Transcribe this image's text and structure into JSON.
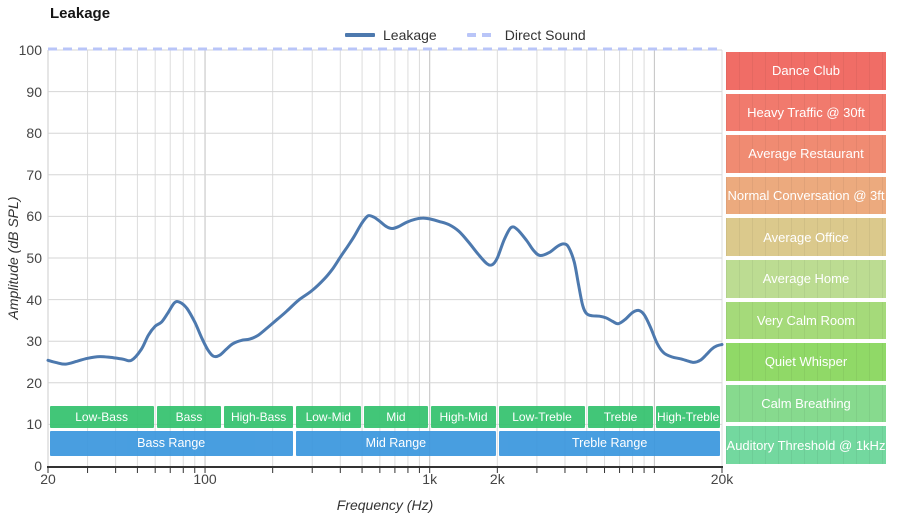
{
  "title": "Leakage",
  "legend": [
    {
      "label": "Leakage",
      "style": "solid",
      "color": "#4d79ae"
    },
    {
      "label": "Direct Sound",
      "style": "dashed",
      "color": "#b9c5f8"
    }
  ],
  "chart_data": {
    "type": "line",
    "title": "Leakage",
    "xlabel": "Frequency (Hz)",
    "ylabel": "Amplitude (dB SPL)",
    "x_scale": "log",
    "xlim": [
      20,
      20000
    ],
    "ylim": [
      0,
      100
    ],
    "grid": true,
    "x_ticks": [
      {
        "f": 20,
        "label": "20"
      },
      {
        "f": 100,
        "label": "100"
      },
      {
        "f": 1000,
        "label": "1k"
      },
      {
        "f": 2000,
        "label": "2k"
      },
      {
        "f": 20000,
        "label": "20k"
      }
    ],
    "y_ticks": [
      0,
      10,
      20,
      30,
      40,
      50,
      60,
      70,
      80,
      90,
      100
    ],
    "series": [
      {
        "name": "Leakage",
        "color": "#4d79ae",
        "points": [
          [
            20,
            25.4
          ],
          [
            22,
            24.8
          ],
          [
            24,
            24.5
          ],
          [
            27,
            25.2
          ],
          [
            30,
            25.9
          ],
          [
            34,
            26.3
          ],
          [
            38,
            26.1
          ],
          [
            43,
            25.7
          ],
          [
            47,
            25.4
          ],
          [
            52,
            28.0
          ],
          [
            56,
            31.5
          ],
          [
            60,
            33.6
          ],
          [
            64,
            34.6
          ],
          [
            68,
            36.6
          ],
          [
            73,
            39.2
          ],
          [
            77,
            39.4
          ],
          [
            83,
            37.9
          ],
          [
            90,
            34.6
          ],
          [
            97,
            30.6
          ],
          [
            103,
            27.9
          ],
          [
            109,
            26.4
          ],
          [
            116,
            26.6
          ],
          [
            124,
            28.0
          ],
          [
            133,
            29.4
          ],
          [
            145,
            30.2
          ],
          [
            158,
            30.5
          ],
          [
            172,
            31.4
          ],
          [
            190,
            33.3
          ],
          [
            210,
            35.3
          ],
          [
            232,
            37.3
          ],
          [
            260,
            39.8
          ],
          [
            300,
            42.2
          ],
          [
            340,
            45.0
          ],
          [
            370,
            47.4
          ],
          [
            400,
            50.2
          ],
          [
            430,
            52.7
          ],
          [
            460,
            55.1
          ],
          [
            490,
            57.7
          ],
          [
            515,
            59.4
          ],
          [
            535,
            60.2
          ],
          [
            565,
            59.8
          ],
          [
            600,
            58.8
          ],
          [
            640,
            57.6
          ],
          [
            680,
            57.1
          ],
          [
            730,
            57.6
          ],
          [
            790,
            58.6
          ],
          [
            860,
            59.3
          ],
          [
            930,
            59.6
          ],
          [
            1000,
            59.4
          ],
          [
            1100,
            58.8
          ],
          [
            1220,
            58.0
          ],
          [
            1350,
            56.4
          ],
          [
            1500,
            53.6
          ],
          [
            1650,
            50.8
          ],
          [
            1800,
            48.6
          ],
          [
            1900,
            48.4
          ],
          [
            2000,
            50.0
          ],
          [
            2150,
            54.5
          ],
          [
            2300,
            57.3
          ],
          [
            2450,
            56.9
          ],
          [
            2700,
            54.2
          ],
          [
            2900,
            51.8
          ],
          [
            3100,
            50.6
          ],
          [
            3400,
            51.3
          ],
          [
            3700,
            52.8
          ],
          [
            3950,
            53.4
          ],
          [
            4150,
            52.6
          ],
          [
            4400,
            49.0
          ],
          [
            4600,
            43.5
          ],
          [
            4800,
            38.5
          ],
          [
            5000,
            36.6
          ],
          [
            5300,
            36.1
          ],
          [
            5700,
            36.0
          ],
          [
            6100,
            35.6
          ],
          [
            6500,
            34.8
          ],
          [
            6900,
            34.2
          ],
          [
            7400,
            35.2
          ],
          [
            8000,
            36.9
          ],
          [
            8500,
            37.4
          ],
          [
            9000,
            36.4
          ],
          [
            9600,
            33.4
          ],
          [
            10300,
            29.4
          ],
          [
            11000,
            27.2
          ],
          [
            12000,
            26.2
          ],
          [
            13000,
            25.8
          ],
          [
            14000,
            25.3
          ],
          [
            15000,
            24.9
          ],
          [
            16000,
            25.4
          ],
          [
            17000,
            26.7
          ],
          [
            18000,
            28.1
          ],
          [
            19000,
            28.9
          ],
          [
            20000,
            29.2
          ]
        ]
      },
      {
        "name": "Direct Sound",
        "color": "#b9c5f8",
        "dashed": true,
        "constant_value": 100
      }
    ],
    "tone_band_color": "#34c26e",
    "range_band_color": "#3b97de",
    "tone_bands": [
      {
        "label": "Low-Bass",
        "f1": 20,
        "f2": 60
      },
      {
        "label": "Bass",
        "f1": 60,
        "f2": 120
      },
      {
        "label": "High-Bass",
        "f1": 120,
        "f2": 250
      },
      {
        "label": "Low-Mid",
        "f1": 250,
        "f2": 500
      },
      {
        "label": "Mid",
        "f1": 500,
        "f2": 1000
      },
      {
        "label": "High-Mid",
        "f1": 1000,
        "f2": 2000
      },
      {
        "label": "Low-Treble",
        "f1": 2000,
        "f2": 5000
      },
      {
        "label": "Treble",
        "f1": 5000,
        "f2": 10000
      },
      {
        "label": "High-Treble",
        "f1": 10000,
        "f2": 20000
      }
    ],
    "range_bands": [
      {
        "label": "Bass Range",
        "f1": 20,
        "f2": 250
      },
      {
        "label": "Mid Range",
        "f1": 250,
        "f2": 2000
      },
      {
        "label": "Treble Range",
        "f1": 2000,
        "f2": 20000
      }
    ],
    "noise_levels": [
      {
        "label": "Dance Club",
        "db": [
          90,
          100
        ],
        "color": "#f06d66"
      },
      {
        "label": "Heavy Traffic @ 30ft",
        "db": [
          80,
          90
        ],
        "color": "#f17a6d"
      },
      {
        "label": "Average Restaurant",
        "db": [
          70,
          80
        ],
        "color": "#f08b72"
      },
      {
        "label": "Normal Conversation @ 3ft",
        "db": [
          60,
          70
        ],
        "color": "#ecaa7e"
      },
      {
        "label": "Average Office",
        "db": [
          50,
          60
        ],
        "color": "#dbc98c"
      },
      {
        "label": "Average Home",
        "db": [
          40,
          50
        ],
        "color": "#bcdc92"
      },
      {
        "label": "Very Calm Room",
        "db": [
          30,
          40
        ],
        "color": "#a5da7a"
      },
      {
        "label": "Quiet Whisper",
        "db": [
          20,
          30
        ],
        "color": "#90d967"
      },
      {
        "label": "Calm Breathing",
        "db": [
          10,
          20
        ],
        "color": "#87da8e"
      },
      {
        "label": "Auditory Threshold @ 1kHz",
        "db": [
          0,
          10
        ],
        "color": "#73d89f"
      }
    ]
  }
}
